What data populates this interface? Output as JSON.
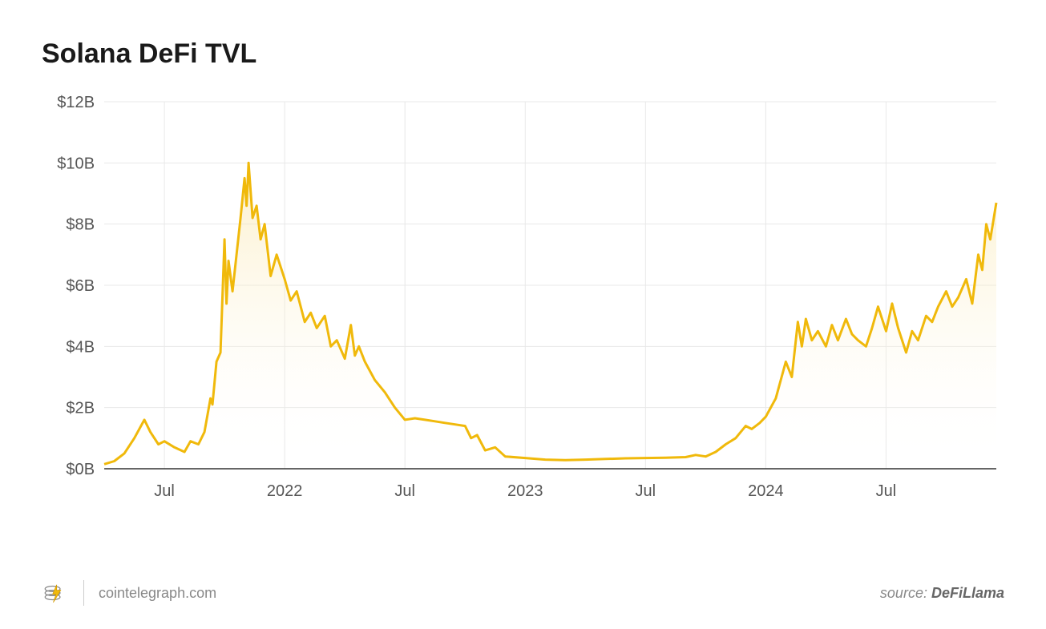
{
  "chart": {
    "type": "area",
    "title": "Solana DeFi TVL",
    "background_color": "#ffffff",
    "grid_color": "#e8e8e8",
    "axis_color": "#333333",
    "line_color": "#f0b90b",
    "line_width": 3,
    "area_gradient_top": "#f9e3a0",
    "area_gradient_top_opacity": 0.55,
    "area_gradient_bottom": "#ffffff",
    "area_gradient_bottom_opacity": 0.0,
    "label_color": "#555555",
    "label_fontsize": 20,
    "title_color": "#1a1a1a",
    "title_fontsize": 34,
    "title_fontweight": 700,
    "ylim": [
      0,
      12
    ],
    "ytick_step": 2,
    "y_unit_prefix": "$",
    "y_unit_suffix": "B",
    "y_ticks": [
      "$0B",
      "$2B",
      "$4B",
      "$6B",
      "$8B",
      "$10B",
      "$12B"
    ],
    "x_range_months": [
      "2021-04",
      "2024-12"
    ],
    "x_axis_ticks": [
      {
        "t": 3,
        "label": "Jul"
      },
      {
        "t": 9,
        "label": "2022"
      },
      {
        "t": 15,
        "label": "Jul"
      },
      {
        "t": 21,
        "label": "2023"
      },
      {
        "t": 27,
        "label": "Jul"
      },
      {
        "t": 33,
        "label": "2024"
      },
      {
        "t": 39,
        "label": "Jul"
      }
    ],
    "series": {
      "points": [
        {
          "t": 0,
          "v": 0.15
        },
        {
          "t": 0.5,
          "v": 0.25
        },
        {
          "t": 1,
          "v": 0.5
        },
        {
          "t": 1.5,
          "v": 1.0
        },
        {
          "t": 2,
          "v": 1.6
        },
        {
          "t": 2.3,
          "v": 1.2
        },
        {
          "t": 2.7,
          "v": 0.8
        },
        {
          "t": 3,
          "v": 0.9
        },
        {
          "t": 3.5,
          "v": 0.7
        },
        {
          "t": 4,
          "v": 0.55
        },
        {
          "t": 4.3,
          "v": 0.9
        },
        {
          "t": 4.7,
          "v": 0.8
        },
        {
          "t": 5,
          "v": 1.2
        },
        {
          "t": 5.3,
          "v": 2.3
        },
        {
          "t": 5.4,
          "v": 2.1
        },
        {
          "t": 5.6,
          "v": 3.5
        },
        {
          "t": 5.8,
          "v": 3.8
        },
        {
          "t": 6,
          "v": 7.5
        },
        {
          "t": 6.1,
          "v": 5.4
        },
        {
          "t": 6.2,
          "v": 6.8
        },
        {
          "t": 6.4,
          "v": 5.8
        },
        {
          "t": 6.6,
          "v": 7.0
        },
        {
          "t": 6.8,
          "v": 8.2
        },
        {
          "t": 7,
          "v": 9.5
        },
        {
          "t": 7.1,
          "v": 8.6
        },
        {
          "t": 7.2,
          "v": 10.0
        },
        {
          "t": 7.4,
          "v": 8.2
        },
        {
          "t": 7.6,
          "v": 8.6
        },
        {
          "t": 7.8,
          "v": 7.5
        },
        {
          "t": 8,
          "v": 8.0
        },
        {
          "t": 8.3,
          "v": 6.3
        },
        {
          "t": 8.6,
          "v": 7.0
        },
        {
          "t": 9,
          "v": 6.2
        },
        {
          "t": 9.3,
          "v": 5.5
        },
        {
          "t": 9.6,
          "v": 5.8
        },
        {
          "t": 10,
          "v": 4.8
        },
        {
          "t": 10.3,
          "v": 5.1
        },
        {
          "t": 10.6,
          "v": 4.6
        },
        {
          "t": 11,
          "v": 5.0
        },
        {
          "t": 11.3,
          "v": 4.0
        },
        {
          "t": 11.6,
          "v": 4.2
        },
        {
          "t": 12,
          "v": 3.6
        },
        {
          "t": 12.3,
          "v": 4.7
        },
        {
          "t": 12.5,
          "v": 3.7
        },
        {
          "t": 12.7,
          "v": 4.0
        },
        {
          "t": 13,
          "v": 3.5
        },
        {
          "t": 13.5,
          "v": 2.9
        },
        {
          "t": 14,
          "v": 2.5
        },
        {
          "t": 14.5,
          "v": 2.0
        },
        {
          "t": 15,
          "v": 1.6
        },
        {
          "t": 15.5,
          "v": 1.65
        },
        {
          "t": 16,
          "v": 1.6
        },
        {
          "t": 16.5,
          "v": 1.55
        },
        {
          "t": 17,
          "v": 1.5
        },
        {
          "t": 17.5,
          "v": 1.45
        },
        {
          "t": 18,
          "v": 1.4
        },
        {
          "t": 18.3,
          "v": 1.0
        },
        {
          "t": 18.6,
          "v": 1.1
        },
        {
          "t": 19,
          "v": 0.6
        },
        {
          "t": 19.5,
          "v": 0.7
        },
        {
          "t": 20,
          "v": 0.4
        },
        {
          "t": 21,
          "v": 0.35
        },
        {
          "t": 22,
          "v": 0.3
        },
        {
          "t": 23,
          "v": 0.28
        },
        {
          "t": 24,
          "v": 0.3
        },
        {
          "t": 25,
          "v": 0.32
        },
        {
          "t": 26,
          "v": 0.34
        },
        {
          "t": 27,
          "v": 0.35
        },
        {
          "t": 28,
          "v": 0.36
        },
        {
          "t": 29,
          "v": 0.38
        },
        {
          "t": 29.5,
          "v": 0.45
        },
        {
          "t": 30,
          "v": 0.4
        },
        {
          "t": 30.5,
          "v": 0.55
        },
        {
          "t": 31,
          "v": 0.8
        },
        {
          "t": 31.5,
          "v": 1.0
        },
        {
          "t": 32,
          "v": 1.4
        },
        {
          "t": 32.3,
          "v": 1.3
        },
        {
          "t": 32.7,
          "v": 1.5
        },
        {
          "t": 33,
          "v": 1.7
        },
        {
          "t": 33.5,
          "v": 2.3
        },
        {
          "t": 34,
          "v": 3.5
        },
        {
          "t": 34.3,
          "v": 3.0
        },
        {
          "t": 34.6,
          "v": 4.8
        },
        {
          "t": 34.8,
          "v": 4.0
        },
        {
          "t": 35,
          "v": 4.9
        },
        {
          "t": 35.3,
          "v": 4.2
        },
        {
          "t": 35.6,
          "v": 4.5
        },
        {
          "t": 36,
          "v": 4.0
        },
        {
          "t": 36.3,
          "v": 4.7
        },
        {
          "t": 36.6,
          "v": 4.2
        },
        {
          "t": 37,
          "v": 4.9
        },
        {
          "t": 37.3,
          "v": 4.4
        },
        {
          "t": 37.6,
          "v": 4.2
        },
        {
          "t": 38,
          "v": 4.0
        },
        {
          "t": 38.3,
          "v": 4.6
        },
        {
          "t": 38.6,
          "v": 5.3
        },
        {
          "t": 39,
          "v": 4.5
        },
        {
          "t": 39.3,
          "v": 5.4
        },
        {
          "t": 39.6,
          "v": 4.6
        },
        {
          "t": 40,
          "v": 3.8
        },
        {
          "t": 40.3,
          "v": 4.5
        },
        {
          "t": 40.6,
          "v": 4.2
        },
        {
          "t": 41,
          "v": 5.0
        },
        {
          "t": 41.3,
          "v": 4.8
        },
        {
          "t": 41.6,
          "v": 5.3
        },
        {
          "t": 42,
          "v": 5.8
        },
        {
          "t": 42.3,
          "v": 5.3
        },
        {
          "t": 42.6,
          "v": 5.6
        },
        {
          "t": 43,
          "v": 6.2
        },
        {
          "t": 43.3,
          "v": 5.4
        },
        {
          "t": 43.6,
          "v": 7.0
        },
        {
          "t": 43.8,
          "v": 6.5
        },
        {
          "t": 44,
          "v": 8.0
        },
        {
          "t": 44.2,
          "v": 7.5
        },
        {
          "t": 44.5,
          "v": 8.7
        }
      ]
    }
  },
  "footer": {
    "site": "cointelegraph.com",
    "source_prefix": "source:",
    "source_name": "DeFiLlama",
    "logo_colors": {
      "outline": "#888888",
      "bolt": "#f0b90b"
    }
  }
}
